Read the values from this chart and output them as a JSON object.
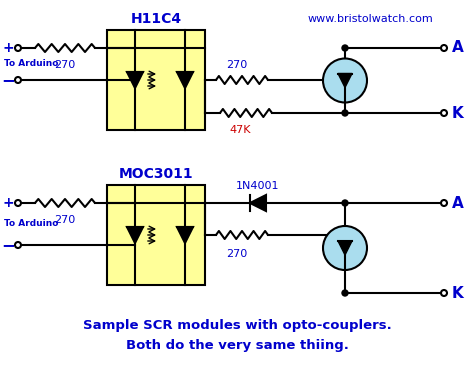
{
  "bg_color": "#ffffff",
  "blue": "#0000cc",
  "dark_blue": "#000080",
  "red": "#cc0000",
  "yellow": "#ffff99",
  "black": "#000000",
  "cyan_fill": "#aaddee",
  "website": "www.bristolwatch.com",
  "h11c4_label": "H11C4",
  "moc3011_label": "MOC3011",
  "diode1n4001": "1N4001",
  "r47k": "47K",
  "caption_line1": "Sample SCR modules with opto-couplers.",
  "caption_line2": "Both do the very same thiing."
}
